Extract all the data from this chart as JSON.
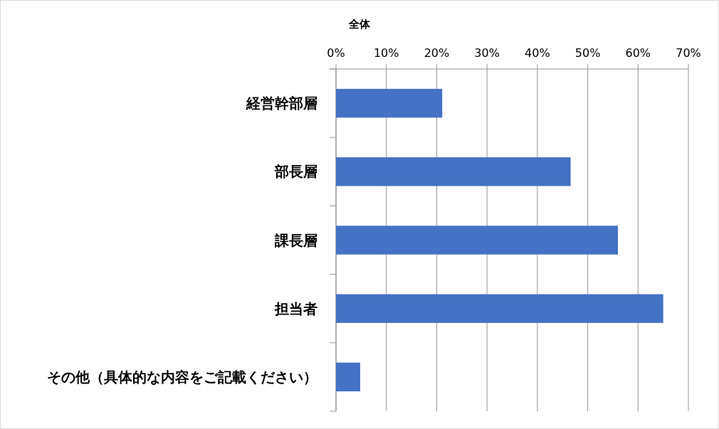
{
  "chart_data": {
    "type": "bar",
    "orientation": "horizontal",
    "title": "全体",
    "categories": [
      "経営幹部層",
      "部長層",
      "課長層",
      "担当者",
      "その他（具体的な内容をご記載ください）"
    ],
    "values": [
      21.1,
      46.6,
      56.0,
      65.0,
      4.8
    ],
    "color": "#4472c4",
    "xlim": [
      0,
      70
    ],
    "xticks": [
      {
        "value": 0,
        "label": "0%"
      },
      {
        "value": 10,
        "label": "10%"
      },
      {
        "value": 20,
        "label": "20%"
      },
      {
        "value": 30,
        "label": "30%"
      },
      {
        "value": 40,
        "label": "40%"
      },
      {
        "value": 50,
        "label": "50%"
      },
      {
        "value": 60,
        "label": "60%"
      },
      {
        "value": 70,
        "label": "70%"
      }
    ],
    "grid": "x"
  }
}
